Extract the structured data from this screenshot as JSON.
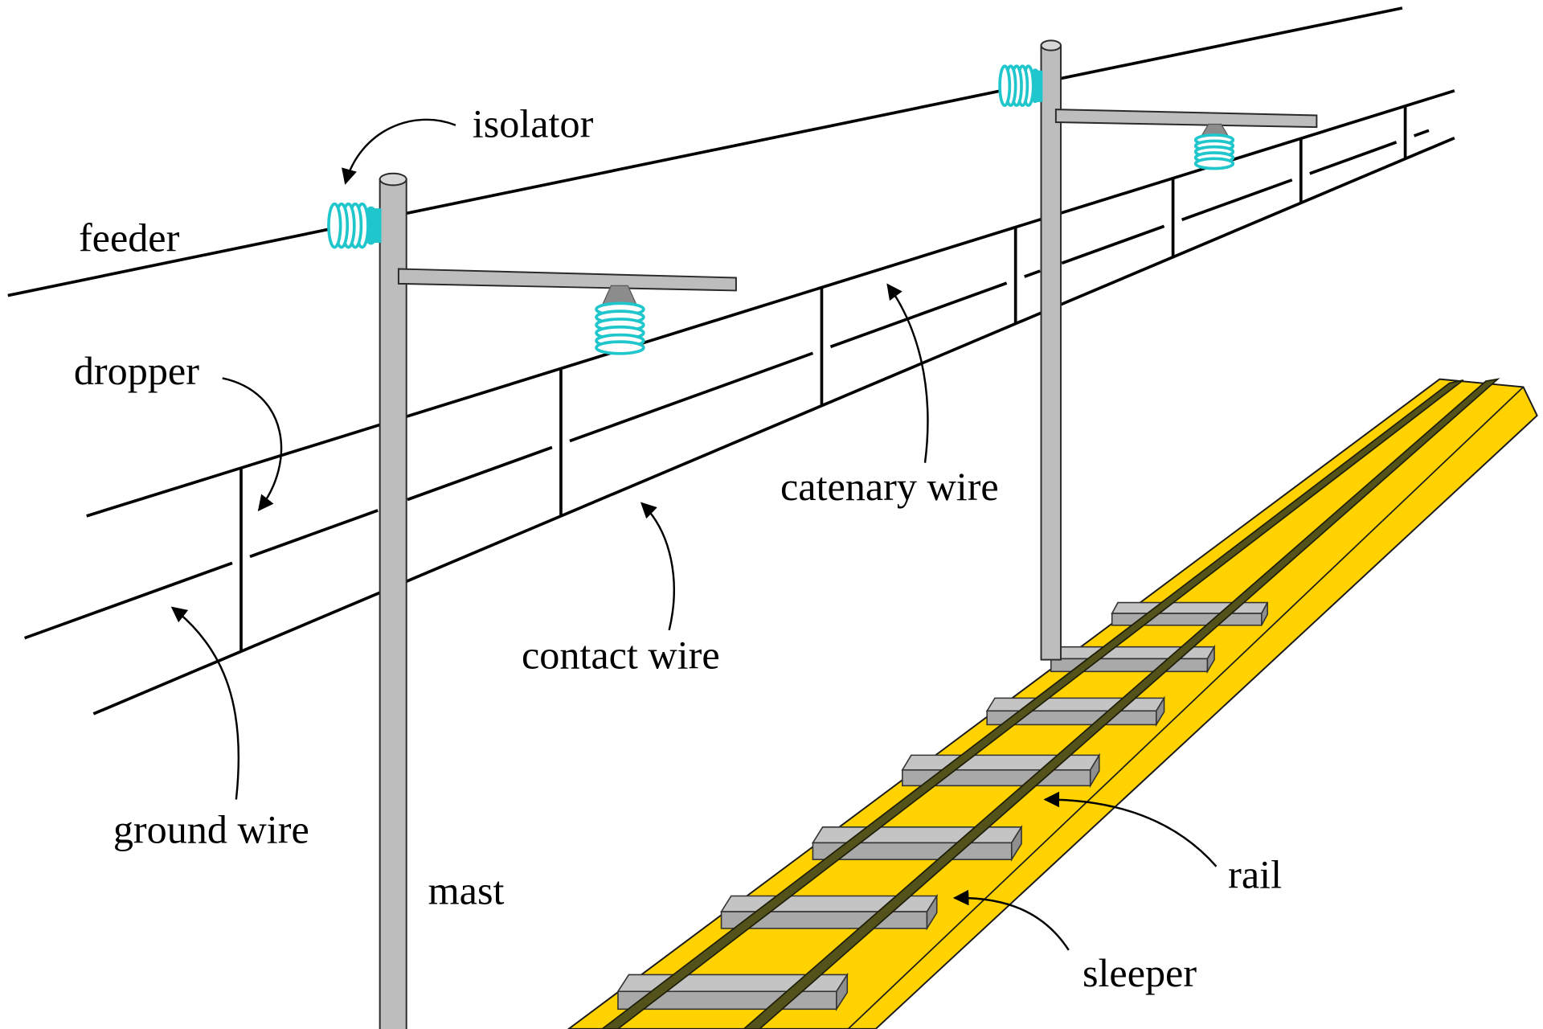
{
  "diagram": {
    "labels": {
      "isolator": "isolator",
      "feeder": "feeder",
      "dropper": "dropper",
      "catenary_wire": "catenary wire",
      "contact_wire": "contact wire",
      "ground_wire": "ground wire",
      "mast": "mast",
      "rail": "rail",
      "sleeper": "sleeper"
    },
    "colors": {
      "insulator": "#1fc6cc",
      "ballast": "#ffd200",
      "rail": "#52521a",
      "sleeper": "#c4c4c4",
      "mast": "#bdbdbd",
      "wire": "#000000"
    }
  }
}
